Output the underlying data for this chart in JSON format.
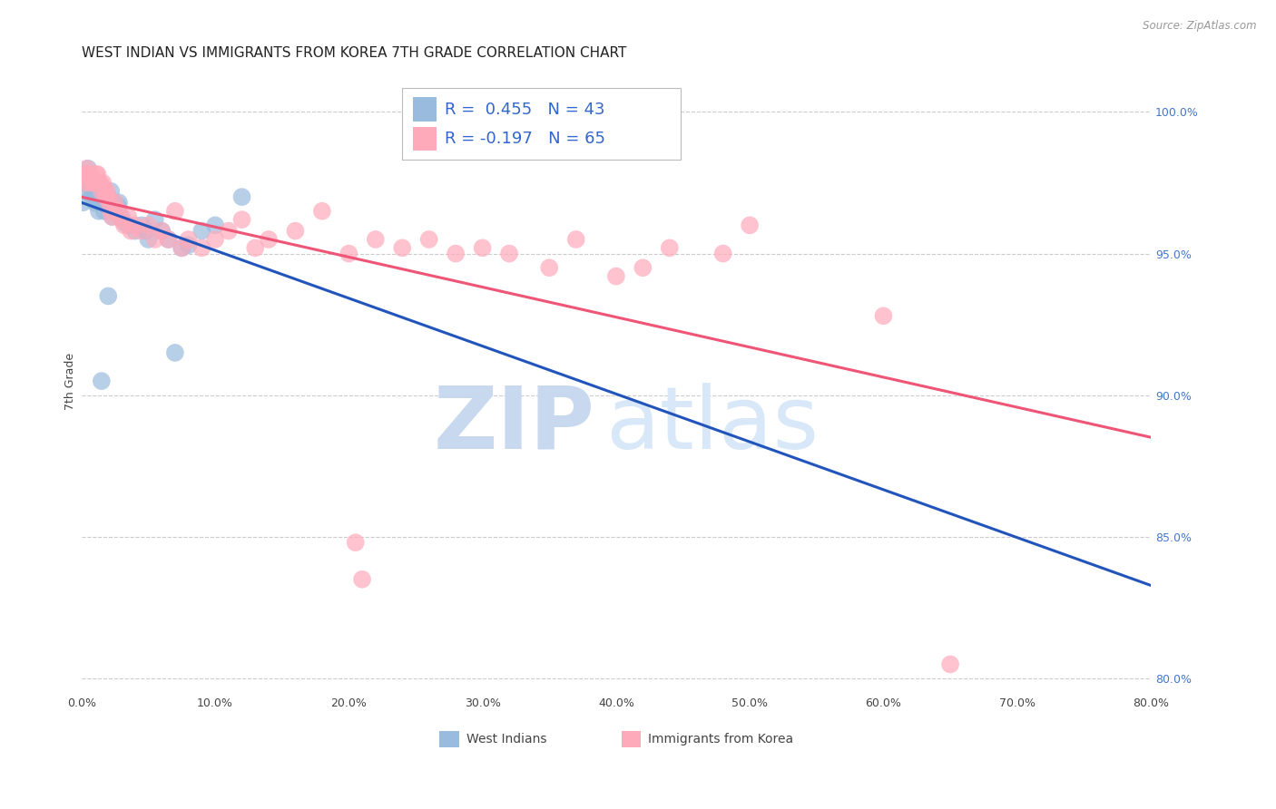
{
  "title": "WEST INDIAN VS IMMIGRANTS FROM KOREA 7TH GRADE CORRELATION CHART",
  "source": "Source: ZipAtlas.com",
  "ylabel": "7th Grade",
  "xlim": [
    0.0,
    80.0
  ],
  "ylim": [
    79.5,
    101.5
  ],
  "xticks": [
    0.0,
    10.0,
    20.0,
    30.0,
    40.0,
    50.0,
    60.0,
    70.0,
    80.0
  ],
  "yticks_right": [
    80.0,
    85.0,
    90.0,
    95.0,
    100.0
  ],
  "blue_R": 0.455,
  "blue_N": 43,
  "pink_R": -0.197,
  "pink_N": 65,
  "blue_color": "#99BBDD",
  "pink_color": "#FFAABB",
  "trendline_blue": "#2255BB",
  "trendline_pink": "#EE5577",
  "blue_points_x": [
    0.1,
    0.2,
    0.3,
    0.4,
    0.5,
    0.6,
    0.7,
    0.8,
    0.9,
    1.0,
    1.1,
    1.2,
    1.3,
    1.4,
    1.5,
    1.6,
    1.7,
    1.8,
    2.0,
    2.1,
    2.2,
    2.5,
    2.8,
    3.0,
    3.5,
    4.0,
    4.5,
    5.0,
    5.5,
    6.0,
    6.5,
    7.0,
    8.0,
    9.0,
    10.0,
    12.0,
    1.5,
    2.0,
    2.3,
    2.7,
    3.2,
    4.8,
    7.5
  ],
  "blue_points_y": [
    96.8,
    97.2,
    97.5,
    97.8,
    98.0,
    97.6,
    97.3,
    97.0,
    97.2,
    96.8,
    97.0,
    97.4,
    96.5,
    97.2,
    96.8,
    97.0,
    96.5,
    96.7,
    97.0,
    96.8,
    97.2,
    96.5,
    96.8,
    96.3,
    96.0,
    95.8,
    96.0,
    95.5,
    96.2,
    95.8,
    95.5,
    91.5,
    95.3,
    95.8,
    96.0,
    97.0,
    90.5,
    93.5,
    96.3,
    96.7,
    96.1,
    95.8,
    95.2
  ],
  "pink_points_x": [
    0.1,
    0.2,
    0.3,
    0.4,
    0.5,
    0.6,
    0.7,
    0.8,
    0.9,
    1.0,
    1.1,
    1.2,
    1.3,
    1.4,
    1.5,
    1.6,
    1.7,
    1.8,
    1.9,
    2.0,
    2.1,
    2.2,
    2.3,
    2.5,
    2.7,
    2.8,
    3.0,
    3.2,
    3.5,
    3.7,
    4.0,
    4.5,
    5.0,
    5.5,
    6.0,
    6.5,
    7.0,
    7.5,
    8.0,
    9.0,
    10.0,
    11.0,
    12.0,
    13.0,
    14.0,
    16.0,
    18.0,
    20.0,
    22.0,
    24.0,
    26.0,
    28.0,
    30.0,
    32.0,
    35.0,
    37.0,
    40.0,
    42.0,
    44.0,
    48.0,
    20.5,
    21.0,
    60.0,
    65.0,
    50.0
  ],
  "pink_points_y": [
    97.8,
    97.5,
    97.8,
    98.0,
    97.8,
    97.5,
    97.8,
    97.5,
    97.6,
    97.5,
    97.8,
    97.8,
    97.5,
    97.5,
    97.2,
    97.5,
    97.3,
    97.0,
    97.2,
    97.0,
    96.8,
    96.5,
    96.3,
    96.8,
    96.5,
    96.5,
    96.2,
    96.0,
    96.3,
    95.8,
    96.0,
    95.8,
    96.0,
    95.5,
    95.8,
    95.5,
    96.5,
    95.2,
    95.5,
    95.2,
    95.5,
    95.8,
    96.2,
    95.2,
    95.5,
    95.8,
    96.5,
    95.0,
    95.5,
    95.2,
    95.5,
    95.0,
    95.2,
    95.0,
    94.5,
    95.5,
    94.2,
    94.5,
    95.2,
    95.0,
    84.8,
    83.5,
    92.8,
    80.5,
    96.0
  ],
  "watermark_zip_color": "#C8D8EE",
  "watermark_atlas_color": "#D8E8F8",
  "background_color": "#FFFFFF",
  "grid_color": "#CCCCCC",
  "title_fontsize": 11,
  "axis_label_fontsize": 9,
  "tick_fontsize": 9
}
